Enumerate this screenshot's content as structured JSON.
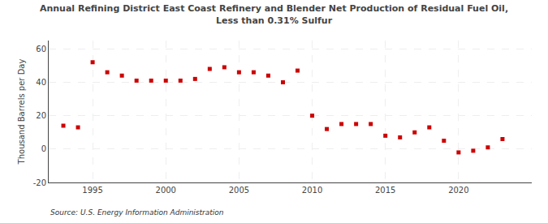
{
  "chart_data": {
    "type": "scatter",
    "title": "Annual Refining District East Coast Refinery and Blender Net Production of Residual Fuel Oil,\nLess than 0.31% Sulfur",
    "ylabel": "Thousand Barrels per Day",
    "annotation": "Source: U.S. Energy Information Administration",
    "x": [
      1993,
      1994,
      1995,
      1996,
      1997,
      1998,
      1999,
      2000,
      2001,
      2002,
      2003,
      2004,
      2005,
      2006,
      2007,
      2008,
      2009,
      2010,
      2011,
      2012,
      2013,
      2014,
      2015,
      2016,
      2017,
      2018,
      2019,
      2020,
      2021,
      2022,
      2023
    ],
    "values": [
      14,
      13,
      52,
      46,
      44,
      41,
      41,
      41,
      41,
      42,
      48,
      49,
      46,
      46,
      44,
      40,
      47,
      20,
      12,
      15,
      15,
      15,
      8,
      7,
      10,
      13,
      5,
      -2,
      -1,
      1,
      6
    ],
    "color": "#cc0000",
    "marker": "square",
    "xlim": [
      1992,
      2025
    ],
    "ylim": [
      -20,
      65
    ],
    "xticks": [
      1995,
      2000,
      2005,
      2010,
      2015,
      2020
    ],
    "yticks": [
      -20,
      0,
      20,
      40,
      60
    ],
    "grid": true
  }
}
